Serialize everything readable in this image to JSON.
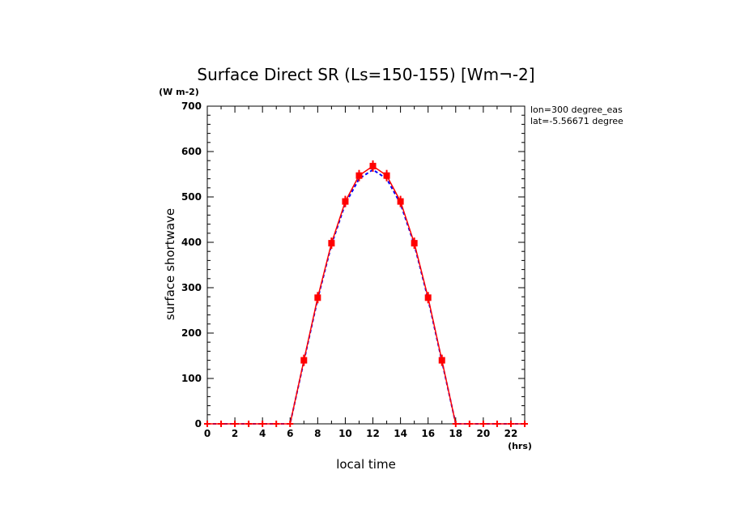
{
  "chart_data": {
    "type": "line",
    "title": "Surface Direct SR (Ls=150-155) [Wm^-2]",
    "units_label": "(W m-2)",
    "xlabel": "local time",
    "x_units": "(hrs)",
    "ylabel": "surface shortwave",
    "annotations": [
      "lon=300 degree_eas",
      "lat=-5.56671 degree"
    ],
    "xlim": [
      0,
      23
    ],
    "ylim": [
      0,
      700
    ],
    "x_ticks": [
      "0",
      "2",
      "4",
      "6",
      "8",
      "10",
      "12",
      "14",
      "16",
      "18",
      "20",
      "22"
    ],
    "y_ticks": [
      "0",
      "100",
      "200",
      "300",
      "400",
      "500",
      "600",
      "700"
    ],
    "x": [
      0,
      1,
      2,
      3,
      4,
      5,
      6,
      7,
      8,
      9,
      10,
      11,
      12,
      13,
      14,
      15,
      16,
      17,
      18,
      19,
      20,
      21,
      22,
      23
    ],
    "series": [
      {
        "color": "#0000ff",
        "style": "dashed",
        "values": [
          0,
          0,
          0,
          0,
          0,
          0,
          0,
          138,
          275,
          395,
          485,
          540,
          560,
          540,
          485,
          395,
          275,
          138,
          0,
          0,
          0,
          0,
          0,
          0
        ]
      },
      {
        "color": "#ff0000",
        "style": "solid-with-markers",
        "values": [
          0,
          0,
          0,
          0,
          0,
          0,
          0,
          140,
          278,
          398,
          490,
          547,
          568,
          547,
          490,
          398,
          278,
          140,
          0,
          0,
          0,
          0,
          0,
          0
        ]
      }
    ],
    "grid": false
  }
}
